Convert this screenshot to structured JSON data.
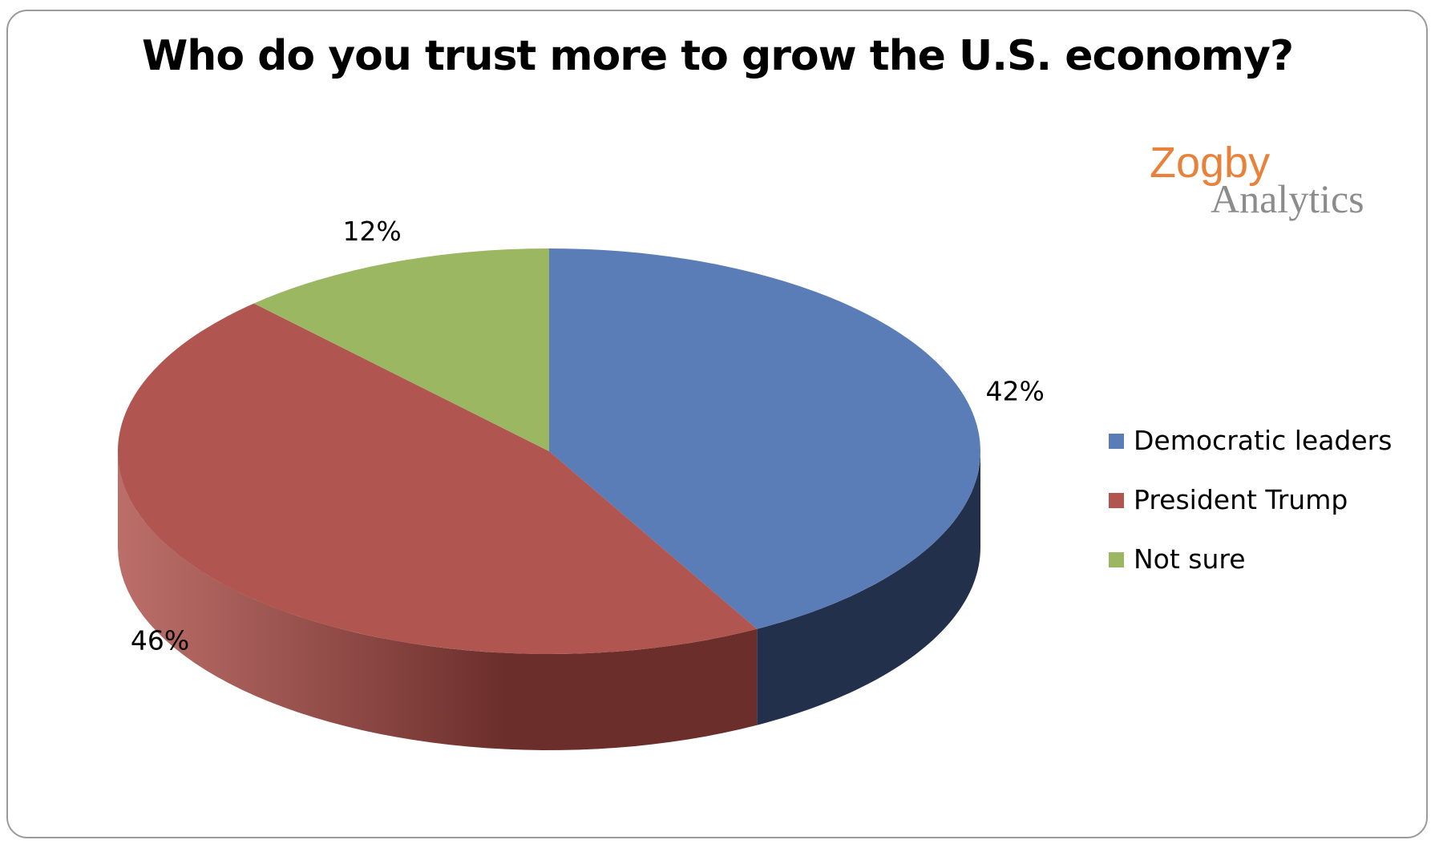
{
  "chart_data": {
    "type": "pie",
    "title": "Who do you trust more to grow the U.S. economy?",
    "three_d": true,
    "categories": [
      "Democratic leaders",
      "President Trump",
      "Not sure"
    ],
    "values": [
      42,
      46,
      12
    ],
    "data_labels": [
      "42%",
      "46%",
      "12%"
    ],
    "colors": [
      "#5a7db8",
      "#b0554f",
      "#9bb762"
    ],
    "side_colors": [
      "#22304c",
      "#6b2e2b",
      "#5b6e38"
    ],
    "legend_position": "right"
  },
  "brand": {
    "word1": "Zogby",
    "word2": "Analytics",
    "color_word1": "#e8813a",
    "color_word2": "#8c8c8c"
  }
}
